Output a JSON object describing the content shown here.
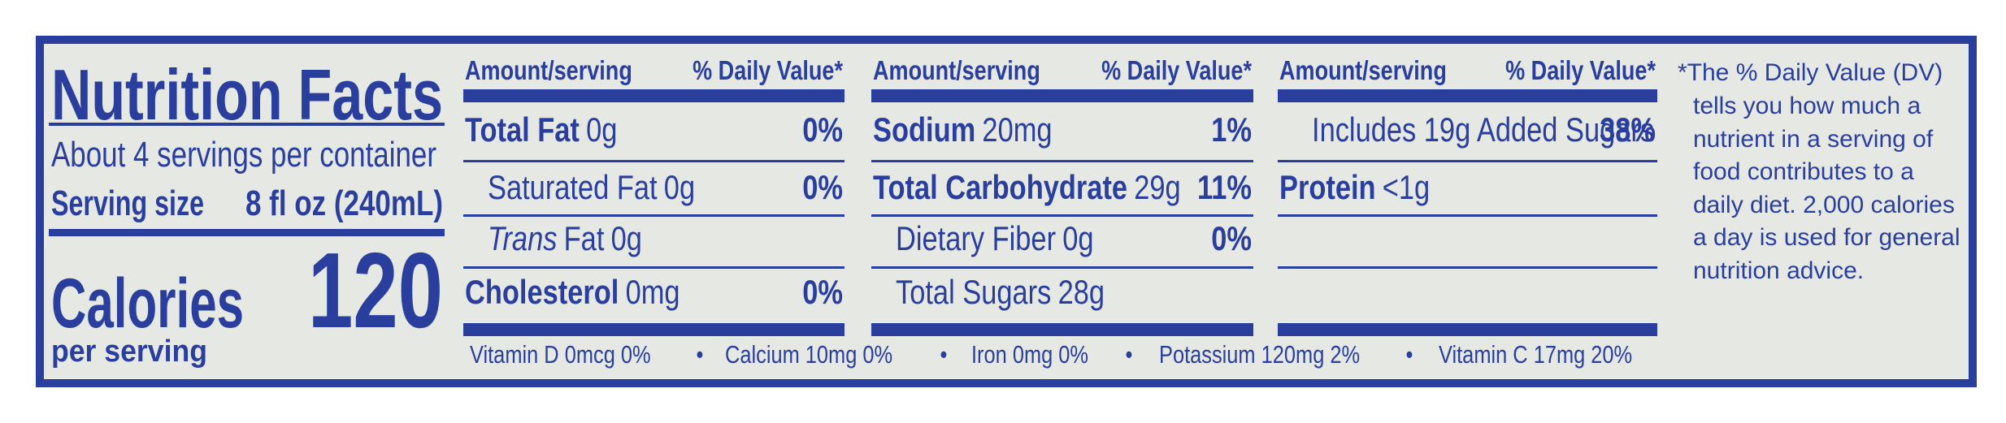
{
  "label": {
    "title": "Nutrition Facts",
    "servings": "About 4 servings per container",
    "serving_size_label": "Serving size",
    "serving_size": "8 fl oz (240mL)",
    "calories_label": "Calories",
    "calories": "120",
    "per_serving": "per serving",
    "columns": [
      {
        "header": {
          "amount": "Amount/serving",
          "dv": "% Daily Value*"
        },
        "rows": [
          {
            "name": "Total Fat",
            "amount": "0g",
            "dv": "0%",
            "bold": true
          },
          {
            "name": "Saturated Fat",
            "amount": "0g",
            "dv": "0%",
            "indent": true
          },
          {
            "name_italic": "Trans",
            "name": "Fat",
            "amount": "0g",
            "indent": true
          },
          {
            "name": "Cholesterol",
            "amount": "0mg",
            "dv": "0%",
            "bold": true
          }
        ]
      },
      {
        "header": {
          "amount": "Amount/serving",
          "dv": "% Daily Value*"
        },
        "rows": [
          {
            "name": "Sodium",
            "amount": "20mg",
            "dv": "1%",
            "bold": true
          },
          {
            "name": "Total Carbohydrate",
            "amount": "29g",
            "dv": "11%",
            "bold": true
          },
          {
            "name": "Dietary Fiber",
            "amount": "0g",
            "dv": "0%",
            "indent": true
          },
          {
            "name": "Total Sugars",
            "amount": "28g",
            "indent": true
          }
        ]
      },
      {
        "header": {
          "amount": "Amount/serving",
          "dv": "% Daily Value*"
        },
        "rows": [
          {
            "name": "Includes 19g Added Sugars",
            "dv": "38%",
            "indent": true,
            "double_indent": true
          },
          {
            "name": "Protein",
            "amount": "<1g",
            "bold": true
          }
        ]
      }
    ],
    "micronutrients": [
      "Vitamin D 0mcg 0%",
      "Calcium 10mg 0%",
      "Iron 0mg 0%",
      "Potassium 120mg 2%",
      "Vitamin C 17mg 20%"
    ],
    "separator": "•",
    "footnote": [
      "*The % Daily Value (DV)",
      "tells you how much a",
      "nutrient in a serving of",
      "food contributes to a",
      "daily diet. 2,000 calories",
      "a day is used for general",
      "nutrition advice."
    ]
  }
}
